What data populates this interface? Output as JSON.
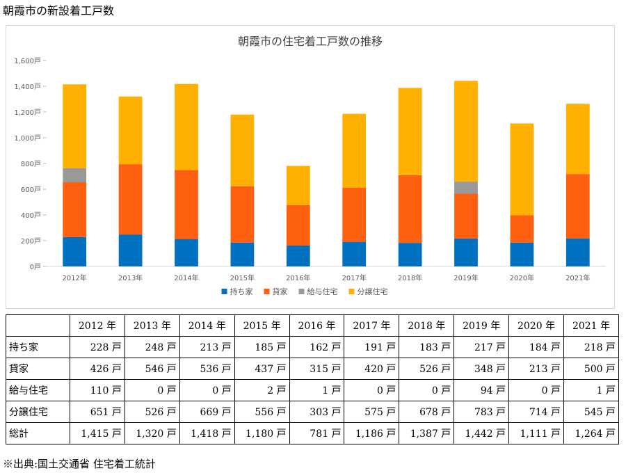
{
  "page": {
    "title": "朝霞市の新設着工戸数",
    "source": "※出典:国土交通省 住宅着工統計"
  },
  "chart_data": {
    "type": "bar",
    "stacked": true,
    "title": "朝霞市の住宅着工戸数の推移",
    "categories": [
      "2012年",
      "2013年",
      "2014年",
      "2015年",
      "2016年",
      "2017年",
      "2018年",
      "2019年",
      "2020年",
      "2021年"
    ],
    "series": [
      {
        "name": "持ち家",
        "color": "#0070c0",
        "values": [
          228,
          248,
          213,
          185,
          162,
          191,
          183,
          217,
          184,
          218
        ]
      },
      {
        "name": "貸家",
        "color": "#ff6010",
        "values": [
          426,
          546,
          536,
          437,
          315,
          420,
          526,
          348,
          213,
          500
        ]
      },
      {
        "name": "給与住宅",
        "color": "#999999",
        "values": [
          110,
          0,
          0,
          2,
          1,
          0,
          0,
          94,
          0,
          1
        ]
      },
      {
        "name": "分譲住宅",
        "color": "#ffb000",
        "values": [
          651,
          526,
          669,
          556,
          303,
          575,
          678,
          783,
          714,
          545
        ]
      }
    ],
    "ylim": [
      0,
      1600
    ],
    "yticks": [
      "0戸",
      "200戸",
      "400戸",
      "600戸",
      "800戸",
      "1,000戸",
      "1,200戸",
      "1,400戸",
      "1,600戸"
    ],
    "legend_position": "bottom",
    "grid": false
  },
  "table": {
    "headers": [
      "2012 年",
      "2013 年",
      "2014 年",
      "2015 年",
      "2016 年",
      "2017 年",
      "2018 年",
      "2019 年",
      "2020 年",
      "2021 年"
    ],
    "rows": [
      {
        "label": "持ち家",
        "cells": [
          "228 戸",
          "248 戸",
          "213 戸",
          "185 戸",
          "162 戸",
          "191 戸",
          "183 戸",
          "217 戸",
          "184 戸",
          "218 戸"
        ]
      },
      {
        "label": "貸家",
        "cells": [
          "426 戸",
          "546 戸",
          "536 戸",
          "437 戸",
          "315 戸",
          "420 戸",
          "526 戸",
          "348 戸",
          "213 戸",
          "500 戸"
        ]
      },
      {
        "label": "給与住宅",
        "cells": [
          "110 戸",
          "0 戸",
          "0 戸",
          "2 戸",
          "1 戸",
          "0 戸",
          "0 戸",
          "94 戸",
          "0 戸",
          "1 戸"
        ]
      },
      {
        "label": "分譲住宅",
        "cells": [
          "651 戸",
          "526 戸",
          "669 戸",
          "556 戸",
          "303 戸",
          "575 戸",
          "678 戸",
          "783 戸",
          "714 戸",
          "545 戸"
        ]
      },
      {
        "label": "総計",
        "cells": [
          "1,415 戸",
          "1,320 戸",
          "1,418 戸",
          "1,180 戸",
          "781 戸",
          "1,186 戸",
          "1,387 戸",
          "1,442 戸",
          "1,111 戸",
          "1,264 戸"
        ]
      }
    ]
  }
}
